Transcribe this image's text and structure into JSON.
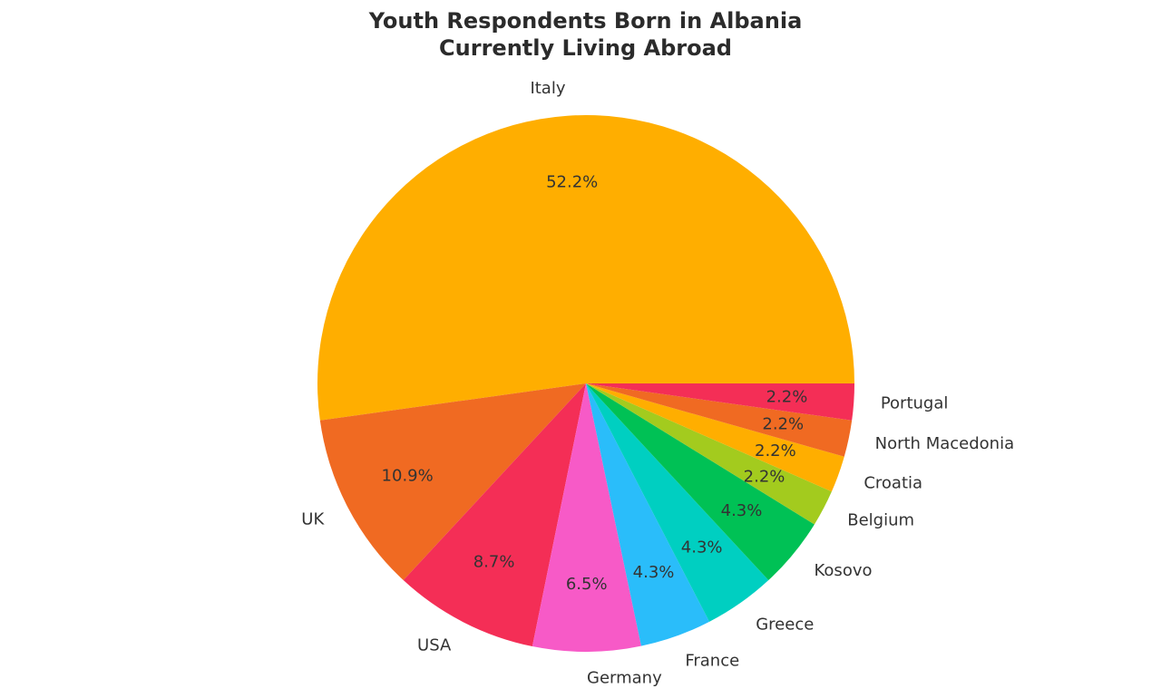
{
  "chart_data": {
    "type": "pie",
    "title": "Youth Respondents Born in Albania\nCurrently Living Abroad",
    "categories": [
      "Italy",
      "UK",
      "USA",
      "Germany",
      "France",
      "Greece",
      "Kosovo",
      "Belgium",
      "Croatia",
      "North Macedonia",
      "Portugal"
    ],
    "values": [
      52.2,
      10.9,
      8.7,
      6.5,
      4.3,
      4.3,
      4.3,
      2.2,
      2.2,
      2.2,
      2.2
    ],
    "value_labels": [
      "52.2%",
      "10.9%",
      "8.7%",
      "6.5%",
      "4.3%",
      "4.3%",
      "4.3%",
      "2.2%",
      "2.2%",
      "2.2%",
      "2.2%"
    ],
    "colors": [
      "#ffae00",
      "#f06a22",
      "#f42e56",
      "#f75ac7",
      "#2abdfa",
      "#00cfc1",
      "#00c155",
      "#a3cb1e",
      "#ffae00",
      "#f06a22",
      "#f42e56"
    ]
  }
}
